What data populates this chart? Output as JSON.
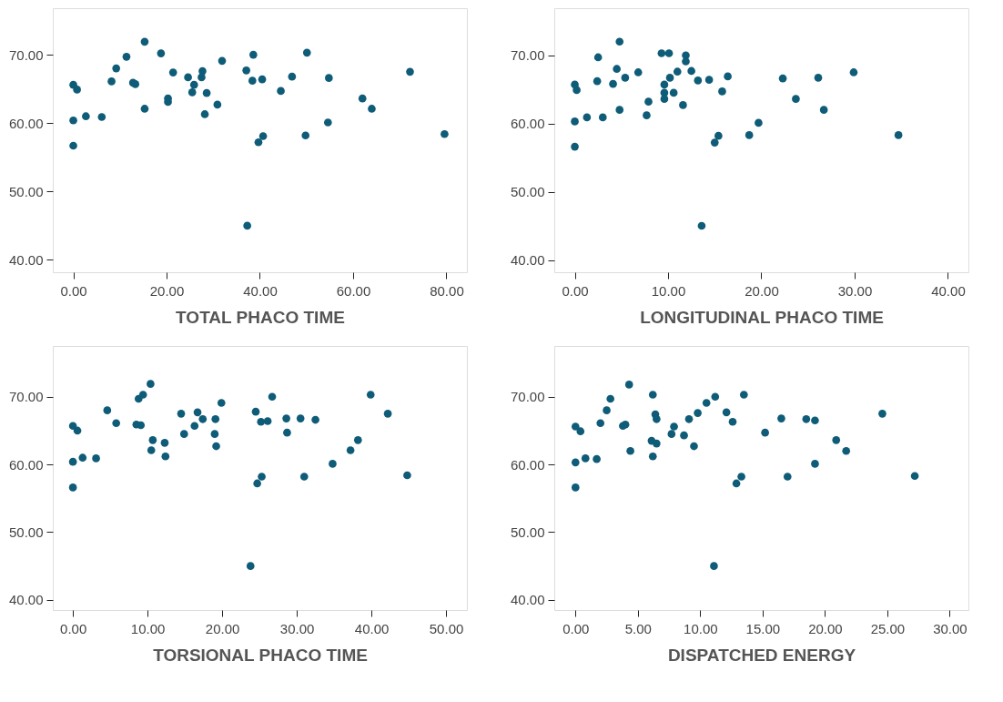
{
  "chart_data": [
    {
      "type": "scatter",
      "xlabel": "TOTAL PHACO TIME",
      "color": "#0f5c78",
      "marker": "circle",
      "grid": false,
      "x": [
        0,
        0.8,
        0,
        0,
        2.7,
        6.1,
        8.2,
        9.2,
        11.4,
        12.8,
        13.3,
        15.3,
        15.3,
        18.8,
        20.3,
        20.3,
        21.4,
        24.6,
        25.9,
        25.5,
        27.7,
        27.5,
        28.6,
        28.2,
        30.9,
        31.9,
        37.1,
        38.6,
        38.4,
        40.5,
        40.7,
        39.7,
        37.3,
        44.5,
        46.9,
        50.1,
        49.8,
        54.8,
        54.6,
        62.0,
        64.0,
        72.2,
        79.6
      ],
      "values": [
        65.6,
        64.9,
        60.4,
        56.7,
        61.0,
        60.9,
        66.1,
        68.0,
        69.7,
        65.9,
        65.7,
        71.9,
        62.1,
        70.2,
        63.6,
        63.1,
        67.4,
        66.7,
        65.6,
        64.5,
        67.6,
        66.7,
        64.4,
        61.3,
        62.7,
        69.1,
        67.7,
        70.0,
        66.2,
        66.4,
        58.1,
        57.2,
        45.0,
        64.7,
        66.8,
        70.3,
        58.2,
        66.6,
        60.1,
        63.6,
        62.1,
        67.5,
        58.4
      ],
      "xlim": [
        -4.4,
        84.4
      ],
      "ylim": [
        38.2,
        76.8
      ],
      "xticks": [
        {
          "value": 0,
          "label": "0.00"
        },
        {
          "value": 20,
          "label": "20.00"
        },
        {
          "value": 40,
          "label": "40.00"
        },
        {
          "value": 60,
          "label": "60.00"
        },
        {
          "value": 80,
          "label": "80.00"
        }
      ],
      "yticks": [
        {
          "value": 40,
          "label": "40.00"
        },
        {
          "value": 50,
          "label": "50.00"
        },
        {
          "value": 60,
          "label": "60.00"
        },
        {
          "value": 70,
          "label": "70.00"
        }
      ]
    },
    {
      "type": "scatter",
      "xlabel": "LONGITUDINAL PHACO TIME",
      "color": "#0f5c78",
      "marker": "circle",
      "grid": false,
      "x": [
        0,
        0.2,
        0,
        0,
        1.3,
        3.0,
        2.4,
        2.5,
        4.1,
        4.5,
        4.8,
        4.8,
        5.4,
        6.8,
        7.7,
        7.9,
        9.3,
        10.1,
        9.6,
        9.6,
        9.6,
        10.2,
        10.6,
        11.0,
        11.6,
        11.9,
        11.9,
        12.5,
        13.2,
        14.4,
        15.8,
        16.4,
        15.4,
        15.0,
        13.6,
        18.7,
        19.7,
        22.3,
        23.7,
        26.1,
        26.7,
        29.9,
        34.7
      ],
      "values": [
        65.7,
        64.9,
        60.3,
        56.6,
        60.9,
        60.9,
        66.2,
        69.7,
        65.8,
        68.0,
        72.0,
        62.0,
        66.7,
        67.5,
        61.2,
        63.2,
        70.3,
        70.3,
        65.7,
        64.5,
        63.6,
        66.7,
        64.5,
        67.6,
        62.7,
        70.0,
        69.1,
        67.7,
        66.3,
        66.4,
        64.7,
        66.9,
        58.2,
        57.2,
        45.0,
        58.3,
        60.1,
        66.6,
        63.6,
        66.7,
        62.0,
        67.5,
        58.3
      ],
      "xlim": [
        -2.2,
        42.2
      ],
      "ylim": [
        38.2,
        76.9
      ],
      "xticks": [
        {
          "value": 0,
          "label": "0.00"
        },
        {
          "value": 10,
          "label": "10.00"
        },
        {
          "value": 20,
          "label": "20.00"
        },
        {
          "value": 30,
          "label": "30.00"
        },
        {
          "value": 40,
          "label": "40.00"
        }
      ],
      "yticks": [
        {
          "value": 40,
          "label": "40.00"
        },
        {
          "value": 50,
          "label": "50.00"
        },
        {
          "value": 60,
          "label": "60.00"
        },
        {
          "value": 70,
          "label": "70.00"
        }
      ]
    },
    {
      "type": "scatter",
      "xlabel": "TORSIONAL PHACO TIME",
      "color": "#0f5c78",
      "marker": "circle",
      "grid": false,
      "x": [
        0,
        0.6,
        0,
        0,
        1.3,
        3.1,
        4.6,
        5.8,
        8.8,
        9.4,
        10.4,
        8.5,
        9.1,
        10.7,
        10.5,
        12.3,
        12.4,
        14.5,
        14.9,
        16.3,
        16.7,
        17.4,
        19.1,
        19.0,
        19.2,
        19.9,
        23.8,
        24.5,
        25.2,
        26.1,
        26.7,
        24.7,
        25.3,
        28.6,
        28.7,
        30.5,
        31.0,
        32.5,
        34.8,
        37.2,
        38.2,
        39.9,
        42.2,
        44.8
      ],
      "values": [
        65.7,
        65.0,
        60.4,
        56.6,
        61.0,
        60.9,
        68.0,
        66.1,
        69.7,
        70.3,
        71.9,
        65.9,
        65.8,
        63.6,
        62.1,
        63.2,
        61.2,
        67.5,
        64.5,
        65.7,
        67.7,
        66.7,
        66.7,
        64.5,
        62.7,
        69.1,
        45.0,
        67.8,
        66.3,
        66.4,
        70.0,
        57.2,
        58.2,
        66.8,
        64.7,
        66.8,
        58.2,
        66.6,
        60.1,
        62.1,
        63.6,
        70.3,
        67.5,
        58.4
      ],
      "xlim": [
        -2.7,
        52.8
      ],
      "ylim": [
        38.5,
        77.5
      ],
      "xticks": [
        {
          "value": 0,
          "label": "0.00"
        },
        {
          "value": 10,
          "label": "10.00"
        },
        {
          "value": 20,
          "label": "20.00"
        },
        {
          "value": 30,
          "label": "30.00"
        },
        {
          "value": 40,
          "label": "40.00"
        },
        {
          "value": 50,
          "label": "50.00"
        }
      ],
      "yticks": [
        {
          "value": 40,
          "label": "40.00"
        },
        {
          "value": 50,
          "label": "50.00"
        },
        {
          "value": 60,
          "label": "60.00"
        },
        {
          "value": 70,
          "label": "70.00"
        }
      ]
    },
    {
      "type": "scatter",
      "xlabel": "DISPATCHED ENERGY",
      "color": "#0f5c78",
      "marker": "circle",
      "grid": false,
      "x": [
        0,
        0.4,
        0,
        0,
        0.8,
        1.7,
        2.0,
        2.5,
        2.8,
        3.8,
        4.0,
        4.3,
        4.4,
        6.2,
        6.4,
        6.5,
        6.1,
        6.5,
        6.2,
        7.7,
        7.9,
        8.7,
        9.1,
        9.5,
        9.8,
        10.5,
        11.2,
        11.1,
        12.1,
        12.6,
        12.9,
        13.3,
        13.5,
        15.2,
        16.5,
        17.0,
        18.5,
        19.2,
        19.2,
        20.9,
        21.7,
        24.6,
        27.2
      ],
      "values": [
        65.6,
        64.9,
        60.3,
        56.6,
        60.9,
        60.8,
        66.1,
        68.0,
        69.7,
        65.7,
        65.9,
        71.8,
        62.0,
        70.3,
        67.4,
        66.7,
        63.5,
        63.1,
        61.2,
        64.5,
        65.6,
        64.3,
        66.7,
        62.7,
        67.6,
        69.1,
        70.0,
        45.0,
        67.7,
        66.3,
        57.2,
        58.2,
        70.3,
        64.7,
        66.8,
        58.2,
        66.7,
        66.5,
        60.1,
        63.6,
        62.0,
        67.5,
        58.3
      ],
      "xlim": [
        -1.7,
        31.5
      ],
      "ylim": [
        38.5,
        77.5
      ],
      "xticks": [
        {
          "value": 0,
          "label": "0.00"
        },
        {
          "value": 5,
          "label": "5.00"
        },
        {
          "value": 10,
          "label": "10.00"
        },
        {
          "value": 15,
          "label": "15.00"
        },
        {
          "value": 20,
          "label": "20.00"
        },
        {
          "value": 25,
          "label": "25.00"
        },
        {
          "value": 30,
          "label": "30.00"
        }
      ],
      "yticks": [
        {
          "value": 40,
          "label": "40.00"
        },
        {
          "value": 50,
          "label": "50.00"
        },
        {
          "value": 60,
          "label": "60.00"
        },
        {
          "value": 70,
          "label": "70.00"
        }
      ]
    }
  ]
}
